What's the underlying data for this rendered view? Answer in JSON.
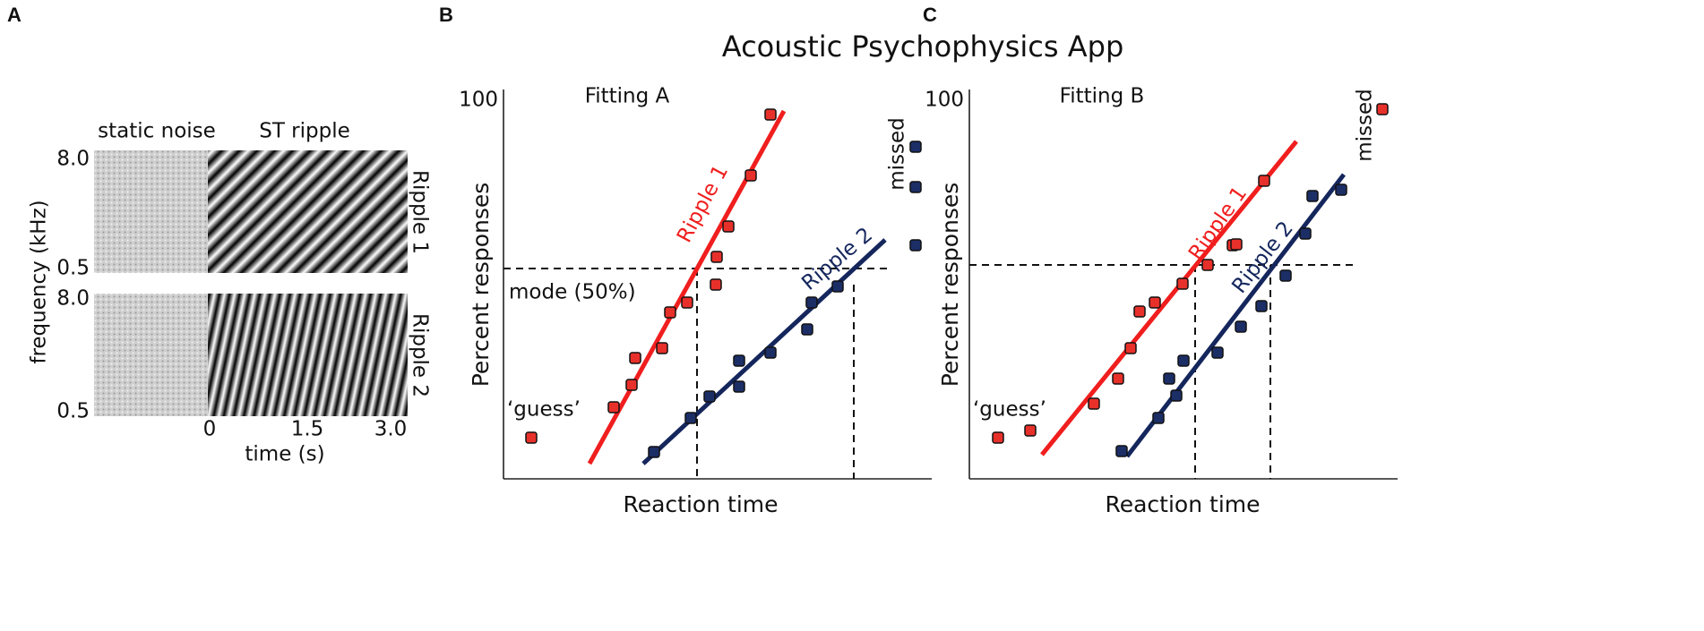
{
  "labels": {
    "a": "A",
    "b": "B",
    "c": "C"
  },
  "title": "Acoustic Psychophysics App",
  "panel_a": {
    "static_noise": "static noise",
    "st_ripple": "ST ripple",
    "freq_top_high": "8.0",
    "freq_top_low": "0.5",
    "freq_bottom_high": "8.0",
    "freq_bottom_low": "0.5",
    "y_label": "frequency (kHz)",
    "ripple_1": "Ripple 1",
    "ripple_2": "Ripple 2",
    "time_ticks": [
      "0",
      "1.5",
      "3.0"
    ],
    "x_label": "time (s)"
  },
  "panel_b": {
    "title": "Fitting A",
    "y_top": "100",
    "y_label": "Percent responses",
    "x_label": "Reaction time",
    "missed": "missed",
    "ripple_1": "Ripple 1",
    "ripple_2": "Ripple 2",
    "mode": "mode (50%)",
    "guess": "‘guess’"
  },
  "panel_c": {
    "title": "Fitting B",
    "y_top": "100",
    "y_label": "Percent responses",
    "x_label": "Reaction time",
    "missed": "missed",
    "ripple_1": "Ripple 1",
    "ripple_2": "Ripple 2",
    "guess": "‘guess’"
  }
}
